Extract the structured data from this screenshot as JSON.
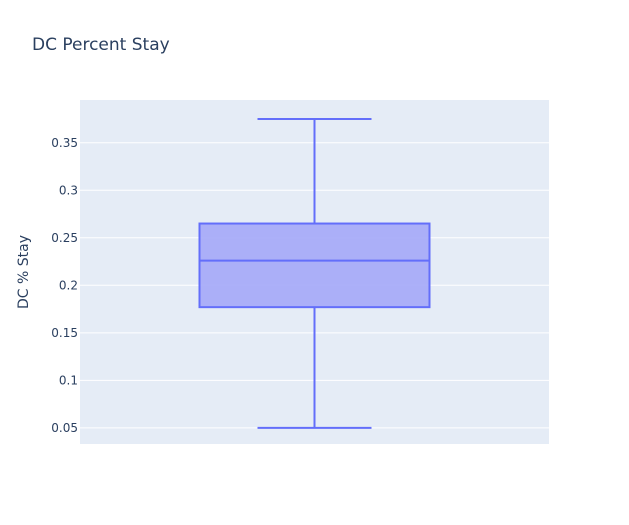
{
  "chart_data": {
    "type": "box",
    "title": "DC Percent Stay",
    "xlabel": "",
    "ylabel": "DC % Stay",
    "ylim": [
      0.033,
      0.395
    ],
    "yticks": [
      0.05,
      0.1,
      0.15,
      0.2,
      0.25,
      0.3,
      0.35
    ],
    "ytick_labels": [
      "0.05",
      "0.1",
      "0.15",
      "0.2",
      "0.25",
      "0.3",
      "0.35"
    ],
    "grid": true,
    "series": [
      {
        "min": 0.05,
        "q1": 0.177,
        "median": 0.226,
        "q3": 0.265,
        "max": 0.375
      }
    ],
    "colors": {
      "box_line": "#636efa",
      "box_fill": "#a4a9f8",
      "plot_bg": "#e5ecf6",
      "grid": "#ffffff",
      "text": "#2a3f5f"
    }
  }
}
